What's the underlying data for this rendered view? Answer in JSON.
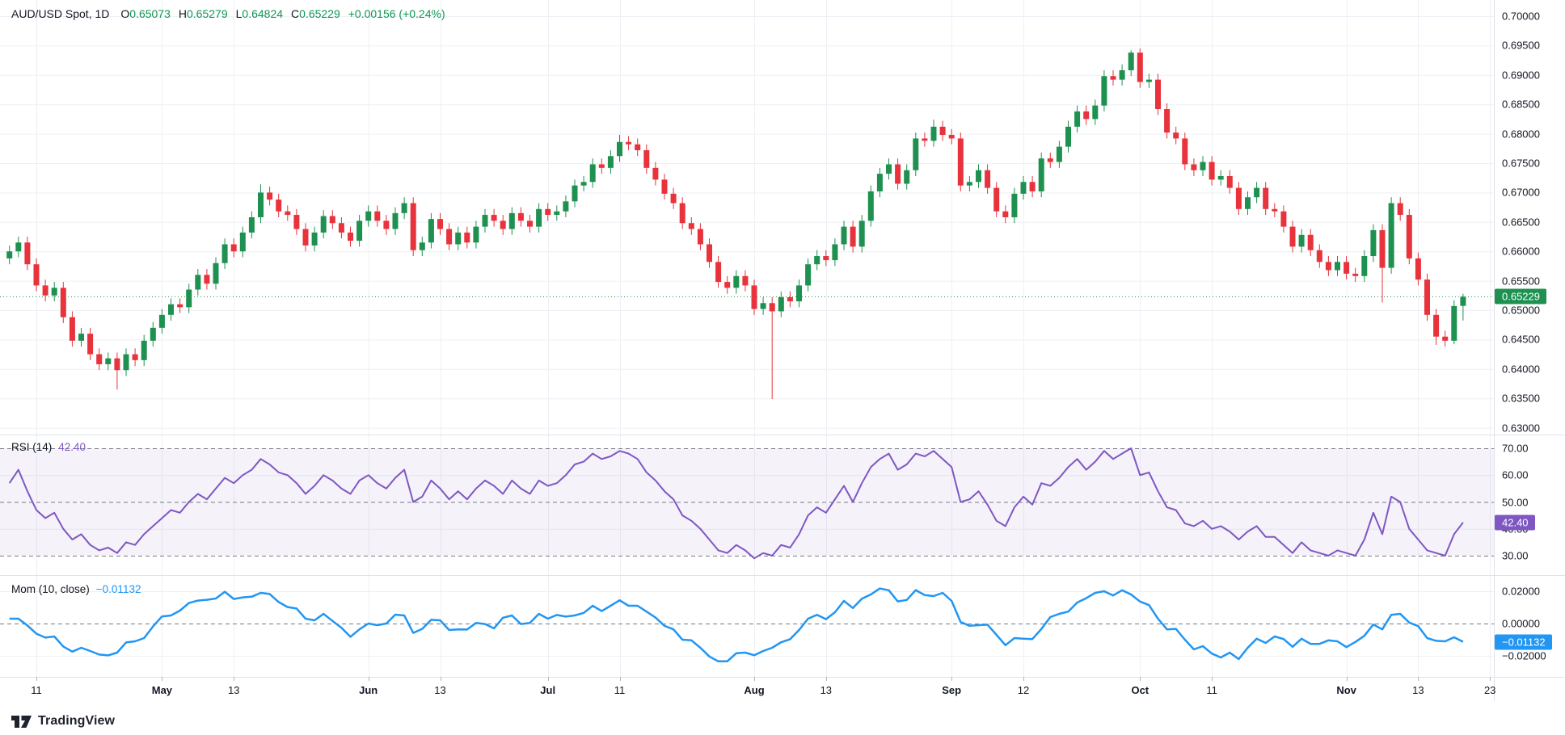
{
  "header": {
    "symbol": "AUD/USD Spot, 1D",
    "o_label": "O",
    "o_value": "0.65073",
    "h_label": "H",
    "h_value": "0.65279",
    "l_label": "L",
    "l_value": "0.64824",
    "c_label": "C",
    "c_value": "0.65229",
    "change": "+0.00156 (+0.24%)"
  },
  "panes": {
    "rsi": {
      "title": "RSI (14)",
      "value": "42.40"
    },
    "mom": {
      "title": "Mom (10, close)",
      "value": "−0.01132"
    }
  },
  "axes": {
    "price_ticks": [
      {
        "text": "0.70000",
        "value": 0.7
      },
      {
        "text": "0.69500",
        "value": 0.695
      },
      {
        "text": "0.69000",
        "value": 0.69
      },
      {
        "text": "0.68500",
        "value": 0.685
      },
      {
        "text": "0.68000",
        "value": 0.68
      },
      {
        "text": "0.67500",
        "value": 0.675
      },
      {
        "text": "0.67000",
        "value": 0.67
      },
      {
        "text": "0.66500",
        "value": 0.665
      },
      {
        "text": "0.66000",
        "value": 0.66
      },
      {
        "text": "0.65500",
        "value": 0.655
      },
      {
        "text": "0.65000",
        "value": 0.65
      },
      {
        "text": "0.64500",
        "value": 0.645
      },
      {
        "text": "0.64000",
        "value": 0.64
      },
      {
        "text": "0.63500",
        "value": 0.635
      },
      {
        "text": "0.63000",
        "value": 0.63
      }
    ],
    "rsi_ticks": [
      {
        "text": "70.00",
        "value": 70
      },
      {
        "text": "60.00",
        "value": 60
      },
      {
        "text": "50.00",
        "value": 50
      },
      {
        "text": "40.00",
        "value": 40
      },
      {
        "text": "30.00",
        "value": 30
      }
    ],
    "mom_ticks": [
      {
        "text": "0.02000",
        "value": 0.02
      },
      {
        "text": "0.00000",
        "value": 0.0
      },
      {
        "text": "−0.02000",
        "value": -0.02
      }
    ],
    "time_labels": [
      {
        "text": "11",
        "index": 3,
        "bold": false
      },
      {
        "text": "May",
        "index": 17,
        "bold": true
      },
      {
        "text": "13",
        "index": 25,
        "bold": false
      },
      {
        "text": "Jun",
        "index": 40,
        "bold": true
      },
      {
        "text": "13",
        "index": 48,
        "bold": false
      },
      {
        "text": "Jul",
        "index": 60,
        "bold": true
      },
      {
        "text": "11",
        "index": 68,
        "bold": false
      },
      {
        "text": "Aug",
        "index": 83,
        "bold": true
      },
      {
        "text": "13",
        "index": 91,
        "bold": false
      },
      {
        "text": "Sep",
        "index": 105,
        "bold": true
      },
      {
        "text": "12",
        "index": 113,
        "bold": false
      },
      {
        "text": "Oct",
        "index": 126,
        "bold": true
      },
      {
        "text": "11",
        "index": 134,
        "bold": false
      },
      {
        "text": "Nov",
        "index": 149,
        "bold": true
      },
      {
        "text": "13",
        "index": 157,
        "bold": false
      },
      {
        "text": "23",
        "index": 165,
        "bold": false
      }
    ],
    "price_badge": {
      "text": "0.65229",
      "value": 0.65229
    },
    "rsi_badge": {
      "text": "42.40",
      "value": 42.4
    },
    "mom_badge": {
      "text": "−0.01132",
      "value": -0.01132
    }
  },
  "branding": {
    "logo_text": "TradingView"
  },
  "colors": {
    "up": "#1e9150",
    "down": "#e8323c",
    "header_value": "#0a9850",
    "rsi_line": "#7e57c2",
    "rsi_band_fill": "rgba(126,87,194,0.08)",
    "mom_line": "#2196f3",
    "grid": "#eef0f5",
    "dashed": "#787b86",
    "separator": "#dfe2ea",
    "axis_text": "#131722",
    "tick_mark": "#b2b5be",
    "price_line": "#1e9150",
    "badge_price_bg": "#1e9150",
    "badge_rsi_bg": "#7e57c2",
    "badge_mom_bg": "#2196f3"
  },
  "chart_data": {
    "type": "candlestick",
    "symbol": "AUD/USD Spot",
    "interval": "1D",
    "price_range": [
      0.63,
      0.7
    ],
    "rsi_range": [
      30,
      70
    ],
    "rsi_bands": [
      70,
      50,
      30
    ],
    "mom_range": [
      -0.02,
      0.02
    ],
    "current_price": 0.65229,
    "candles_ohlc": [
      [
        0.6588,
        0.661,
        0.6578,
        0.66
      ],
      [
        0.66,
        0.6625,
        0.659,
        0.6615
      ],
      [
        0.6615,
        0.6625,
        0.6568,
        0.6578
      ],
      [
        0.6578,
        0.6588,
        0.6532,
        0.6542
      ],
      [
        0.6542,
        0.6552,
        0.6515,
        0.6525
      ],
      [
        0.6525,
        0.6548,
        0.6515,
        0.6538
      ],
      [
        0.6538,
        0.6548,
        0.6478,
        0.6488
      ],
      [
        0.6488,
        0.6498,
        0.6438,
        0.6448
      ],
      [
        0.6448,
        0.647,
        0.6438,
        0.646
      ],
      [
        0.646,
        0.647,
        0.6415,
        0.6425
      ],
      [
        0.6425,
        0.6435,
        0.6398,
        0.6408
      ],
      [
        0.6408,
        0.6428,
        0.6398,
        0.6418
      ],
      [
        0.6418,
        0.6428,
        0.6365,
        0.6398
      ],
      [
        0.6398,
        0.6435,
        0.6388,
        0.6425
      ],
      [
        0.6425,
        0.6435,
        0.6405,
        0.6415
      ],
      [
        0.6415,
        0.6458,
        0.6405,
        0.6448
      ],
      [
        0.6448,
        0.648,
        0.6438,
        0.647
      ],
      [
        0.647,
        0.6502,
        0.646,
        0.6492
      ],
      [
        0.6492,
        0.652,
        0.6482,
        0.651
      ],
      [
        0.651,
        0.652,
        0.6495,
        0.6505
      ],
      [
        0.6505,
        0.6545,
        0.6495,
        0.6535
      ],
      [
        0.6535,
        0.657,
        0.6525,
        0.656
      ],
      [
        0.656,
        0.657,
        0.6535,
        0.6545
      ],
      [
        0.6545,
        0.659,
        0.6535,
        0.658
      ],
      [
        0.658,
        0.6622,
        0.657,
        0.6612
      ],
      [
        0.6612,
        0.6622,
        0.659,
        0.66
      ],
      [
        0.66,
        0.6642,
        0.659,
        0.6632
      ],
      [
        0.6632,
        0.6668,
        0.6622,
        0.6658
      ],
      [
        0.6658,
        0.6714,
        0.6648,
        0.67
      ],
      [
        0.67,
        0.671,
        0.6678,
        0.6688
      ],
      [
        0.6688,
        0.6698,
        0.6658,
        0.6668
      ],
      [
        0.6668,
        0.6678,
        0.6652,
        0.6662
      ],
      [
        0.6662,
        0.6672,
        0.6628,
        0.6638
      ],
      [
        0.6638,
        0.6648,
        0.66,
        0.661
      ],
      [
        0.661,
        0.6642,
        0.66,
        0.6632
      ],
      [
        0.6632,
        0.667,
        0.6622,
        0.666
      ],
      [
        0.666,
        0.667,
        0.6638,
        0.6648
      ],
      [
        0.6648,
        0.6658,
        0.6622,
        0.6632
      ],
      [
        0.6632,
        0.6642,
        0.6608,
        0.6618
      ],
      [
        0.6618,
        0.6662,
        0.6608,
        0.6652
      ],
      [
        0.6652,
        0.6678,
        0.6642,
        0.6668
      ],
      [
        0.6668,
        0.6678,
        0.6642,
        0.6652
      ],
      [
        0.6652,
        0.6662,
        0.6628,
        0.6638
      ],
      [
        0.6638,
        0.6675,
        0.6628,
        0.6665
      ],
      [
        0.6665,
        0.6692,
        0.6655,
        0.6682
      ],
      [
        0.6682,
        0.6692,
        0.6592,
        0.6602
      ],
      [
        0.6602,
        0.6625,
        0.6592,
        0.6615
      ],
      [
        0.6615,
        0.6665,
        0.6605,
        0.6655
      ],
      [
        0.6655,
        0.6665,
        0.6628,
        0.6638
      ],
      [
        0.6638,
        0.6648,
        0.6602,
        0.6612
      ],
      [
        0.6612,
        0.6642,
        0.6602,
        0.6632
      ],
      [
        0.6632,
        0.6642,
        0.6605,
        0.6615
      ],
      [
        0.6615,
        0.6652,
        0.6605,
        0.6642
      ],
      [
        0.6642,
        0.6672,
        0.6632,
        0.6662
      ],
      [
        0.6662,
        0.6672,
        0.6642,
        0.6652
      ],
      [
        0.6652,
        0.6662,
        0.6628,
        0.6638
      ],
      [
        0.6638,
        0.6675,
        0.6628,
        0.6665
      ],
      [
        0.6665,
        0.6675,
        0.6642,
        0.6652
      ],
      [
        0.6652,
        0.6662,
        0.6632,
        0.6642
      ],
      [
        0.6642,
        0.6682,
        0.6632,
        0.6672
      ],
      [
        0.6672,
        0.6682,
        0.6652,
        0.6662
      ],
      [
        0.6662,
        0.6678,
        0.6652,
        0.6668
      ],
      [
        0.6668,
        0.6695,
        0.6658,
        0.6685
      ],
      [
        0.6685,
        0.6722,
        0.6675,
        0.6712
      ],
      [
        0.6712,
        0.6728,
        0.6702,
        0.6718
      ],
      [
        0.6718,
        0.6758,
        0.6708,
        0.6748
      ],
      [
        0.6748,
        0.6758,
        0.6732,
        0.6742
      ],
      [
        0.6742,
        0.6772,
        0.6732,
        0.6762
      ],
      [
        0.6762,
        0.6798,
        0.6752,
        0.6786
      ],
      [
        0.6786,
        0.6796,
        0.6772,
        0.6782
      ],
      [
        0.6782,
        0.6792,
        0.6762,
        0.6772
      ],
      [
        0.6772,
        0.6782,
        0.6732,
        0.6742
      ],
      [
        0.6742,
        0.6752,
        0.6712,
        0.6722
      ],
      [
        0.6722,
        0.6732,
        0.6688,
        0.6698
      ],
      [
        0.6698,
        0.6708,
        0.6672,
        0.6682
      ],
      [
        0.6682,
        0.6692,
        0.6638,
        0.6648
      ],
      [
        0.6648,
        0.6658,
        0.6628,
        0.6638
      ],
      [
        0.6638,
        0.6648,
        0.6602,
        0.6612
      ],
      [
        0.6612,
        0.6622,
        0.6572,
        0.6582
      ],
      [
        0.6582,
        0.6592,
        0.6538,
        0.6548
      ],
      [
        0.6548,
        0.6558,
        0.6528,
        0.6538
      ],
      [
        0.6538,
        0.6568,
        0.6528,
        0.6558
      ],
      [
        0.6558,
        0.6568,
        0.6532,
        0.6542
      ],
      [
        0.6542,
        0.6552,
        0.6492,
        0.6502
      ],
      [
        0.6502,
        0.6522,
        0.6492,
        0.6512
      ],
      [
        0.6512,
        0.6522,
        0.6349,
        0.6498
      ],
      [
        0.6498,
        0.6532,
        0.6488,
        0.6522
      ],
      [
        0.6522,
        0.6532,
        0.6505,
        0.6515
      ],
      [
        0.6515,
        0.6552,
        0.6505,
        0.6542
      ],
      [
        0.6542,
        0.6588,
        0.6532,
        0.6578
      ],
      [
        0.6578,
        0.6602,
        0.6568,
        0.6592
      ],
      [
        0.6592,
        0.6602,
        0.6575,
        0.6585
      ],
      [
        0.6585,
        0.6622,
        0.6575,
        0.6612
      ],
      [
        0.6612,
        0.6652,
        0.6602,
        0.6642
      ],
      [
        0.6642,
        0.6652,
        0.6598,
        0.6608
      ],
      [
        0.6608,
        0.6662,
        0.6598,
        0.6652
      ],
      [
        0.6652,
        0.6712,
        0.6642,
        0.6702
      ],
      [
        0.6702,
        0.6742,
        0.6692,
        0.6732
      ],
      [
        0.6732,
        0.6758,
        0.6722,
        0.6748
      ],
      [
        0.6748,
        0.6758,
        0.6705,
        0.6715
      ],
      [
        0.6715,
        0.6748,
        0.6705,
        0.6738
      ],
      [
        0.6738,
        0.6802,
        0.6728,
        0.6792
      ],
      [
        0.6792,
        0.6802,
        0.6778,
        0.6788
      ],
      [
        0.6788,
        0.6824,
        0.6778,
        0.6812
      ],
      [
        0.6812,
        0.6822,
        0.6788,
        0.6798
      ],
      [
        0.6798,
        0.6808,
        0.6782,
        0.6792
      ],
      [
        0.6792,
        0.6802,
        0.6702,
        0.6712
      ],
      [
        0.6712,
        0.6728,
        0.6702,
        0.6718
      ],
      [
        0.6718,
        0.6748,
        0.6708,
        0.6738
      ],
      [
        0.6738,
        0.6748,
        0.6698,
        0.6708
      ],
      [
        0.6708,
        0.6718,
        0.6658,
        0.6668
      ],
      [
        0.6668,
        0.6678,
        0.6648,
        0.6658
      ],
      [
        0.6658,
        0.6708,
        0.6648,
        0.6698
      ],
      [
        0.6698,
        0.6728,
        0.6688,
        0.6718
      ],
      [
        0.6718,
        0.6728,
        0.6692,
        0.6702
      ],
      [
        0.6702,
        0.6768,
        0.6692,
        0.6758
      ],
      [
        0.6758,
        0.6768,
        0.6742,
        0.6752
      ],
      [
        0.6752,
        0.6788,
        0.6742,
        0.6778
      ],
      [
        0.6778,
        0.6822,
        0.6768,
        0.6812
      ],
      [
        0.6812,
        0.6848,
        0.6802,
        0.6838
      ],
      [
        0.6838,
        0.6848,
        0.6815,
        0.6825
      ],
      [
        0.6825,
        0.6858,
        0.6815,
        0.6848
      ],
      [
        0.6848,
        0.6908,
        0.6838,
        0.6898
      ],
      [
        0.6898,
        0.6908,
        0.6882,
        0.6892
      ],
      [
        0.6892,
        0.6918,
        0.6882,
        0.6908
      ],
      [
        0.6908,
        0.6942,
        0.6898,
        0.6938
      ],
      [
        0.6938,
        0.6945,
        0.6878,
        0.6888
      ],
      [
        0.6888,
        0.6902,
        0.6878,
        0.6892
      ],
      [
        0.6892,
        0.6902,
        0.6832,
        0.6842
      ],
      [
        0.6842,
        0.6852,
        0.6792,
        0.6802
      ],
      [
        0.6802,
        0.6812,
        0.6782,
        0.6792
      ],
      [
        0.6792,
        0.6802,
        0.6738,
        0.6748
      ],
      [
        0.6748,
        0.6758,
        0.6728,
        0.6738
      ],
      [
        0.6738,
        0.6762,
        0.6728,
        0.6752
      ],
      [
        0.6752,
        0.6762,
        0.6712,
        0.6722
      ],
      [
        0.6722,
        0.6738,
        0.6712,
        0.6728
      ],
      [
        0.6728,
        0.6738,
        0.6698,
        0.6708
      ],
      [
        0.6708,
        0.6718,
        0.6662,
        0.6672
      ],
      [
        0.6672,
        0.6702,
        0.6662,
        0.6692
      ],
      [
        0.6692,
        0.6718,
        0.6682,
        0.6708
      ],
      [
        0.6708,
        0.6718,
        0.6662,
        0.6672
      ],
      [
        0.6672,
        0.6682,
        0.6658,
        0.6668
      ],
      [
        0.6668,
        0.6678,
        0.6632,
        0.6642
      ],
      [
        0.6642,
        0.6652,
        0.6598,
        0.6608
      ],
      [
        0.6608,
        0.6638,
        0.6598,
        0.6628
      ],
      [
        0.6628,
        0.6638,
        0.6592,
        0.6602
      ],
      [
        0.6602,
        0.6612,
        0.6572,
        0.6582
      ],
      [
        0.6582,
        0.6592,
        0.6558,
        0.6568
      ],
      [
        0.6568,
        0.6592,
        0.6558,
        0.6582
      ],
      [
        0.6582,
        0.6592,
        0.6552,
        0.6562
      ],
      [
        0.6562,
        0.6572,
        0.6548,
        0.6558
      ],
      [
        0.6558,
        0.6602,
        0.6548,
        0.6592
      ],
      [
        0.6592,
        0.6646,
        0.6582,
        0.66361
      ],
      [
        0.66361,
        0.6646,
        0.6513,
        0.6572
      ],
      [
        0.6572,
        0.6692,
        0.6562,
        0.6682
      ],
      [
        0.6682,
        0.6692,
        0.6652,
        0.6662
      ],
      [
        0.6662,
        0.6672,
        0.6578,
        0.6588
      ],
      [
        0.6588,
        0.6598,
        0.6542,
        0.6552
      ],
      [
        0.6552,
        0.6562,
        0.6482,
        0.6492
      ],
      [
        0.6492,
        0.6502,
        0.6441,
        0.6455
      ],
      [
        0.6455,
        0.6465,
        0.6438,
        0.6448
      ],
      [
        0.6448,
        0.6517,
        0.6442,
        0.6507
      ],
      [
        0.65073,
        0.65279,
        0.64824,
        0.65229
      ]
    ],
    "rsi_values": [
      57,
      62,
      54,
      47,
      44,
      46,
      40,
      36,
      38,
      34,
      32,
      33,
      31,
      35,
      34,
      38,
      41,
      44,
      47,
      46,
      50,
      53,
      51,
      55,
      59,
      57,
      60,
      62,
      66,
      64,
      61,
      60,
      57,
      53,
      56,
      60,
      58,
      55,
      53,
      58,
      60,
      57,
      55,
      59,
      62,
      50,
      52,
      58,
      55,
      51,
      54,
      51,
      55,
      58,
      56,
      53,
      58,
      55,
      53,
      58,
      56,
      57,
      60,
      64,
      65,
      68,
      66,
      67,
      69,
      68,
      66,
      61,
      58,
      54,
      51,
      45,
      43,
      40,
      36,
      32,
      31,
      34,
      32,
      29,
      31,
      30,
      34,
      33,
      38,
      45,
      48,
      46,
      51,
      56,
      50,
      57,
      63,
      66,
      68,
      62,
      64,
      68,
      67,
      69,
      66,
      63,
      50,
      51,
      54,
      49,
      43,
      41,
      48,
      52,
      49,
      57,
      56,
      59,
      63,
      66,
      62,
      65,
      69,
      66,
      68,
      70,
      60,
      61,
      54,
      48,
      47,
      42,
      41,
      43,
      40,
      41,
      39,
      36,
      39,
      41,
      37,
      37,
      34,
      31,
      35,
      32,
      31,
      30,
      32,
      31,
      30,
      36,
      46,
      38,
      52,
      50,
      40,
      36,
      32,
      31,
      30,
      38,
      42.4
    ],
    "mom": {
      "period": 10,
      "source": "close",
      "pre_window_closes": [
        0.657,
        0.6585,
        0.659,
        0.6605,
        0.6612,
        0.6618,
        0.663,
        0.6622,
        0.661,
        0.6595
      ],
      "last_value": -0.01132
    }
  }
}
